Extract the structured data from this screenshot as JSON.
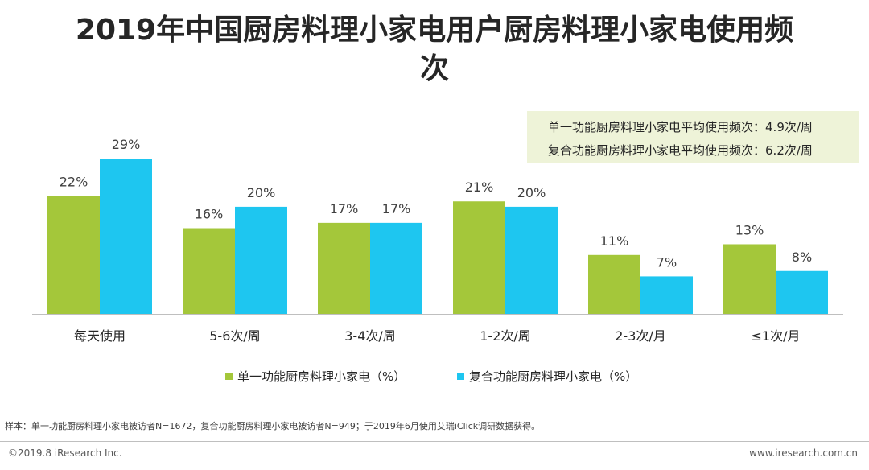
{
  "title": "2019年中国厨房料理小家电用户厨房料理小家电使用频次",
  "info_box": {
    "line1": "单一功能厨房料理小家电平均使用频次：4.9次/周",
    "line2": "复合功能厨房料理小家电平均使用频次：6.2次/周"
  },
  "colors": {
    "series1": "#a4c73a",
    "series2": "#1ec6f0",
    "axis": "#bfbfbf"
  },
  "chart_data": {
    "type": "bar",
    "title": "2019年中国厨房料理小家电用户厨房料理小家电使用频次",
    "categories": [
      "每天使用",
      "5-6次/周",
      "3-4次/周",
      "1-2次/周",
      "2-3次/月",
      "≤1次/月"
    ],
    "series": [
      {
        "name": "单一功能厨房料理小家电（%）",
        "values": [
          22,
          16,
          17,
          21,
          11,
          13
        ],
        "labels": [
          "22%",
          "16%",
          "17%",
          "21%",
          "11%",
          "13%"
        ]
      },
      {
        "name": "复合功能厨房料理小家电（%）",
        "values": [
          29,
          20,
          17,
          20,
          7,
          8
        ],
        "labels": [
          "29%",
          "20%",
          "17%",
          "20%",
          "7%",
          "8%"
        ]
      }
    ],
    "xlabel": "",
    "ylabel": "",
    "ylim": [
      0,
      30
    ],
    "grid": false,
    "legend": "bottom-center"
  },
  "legend": {
    "item1": "单一功能厨房料理小家电（%）",
    "item2": "复合功能厨房料理小家电（%）"
  },
  "sample_note": "样本：单一功能厨房料理小家电被访者N=1672，复合功能厨房料理小家电被访者N=949；于2019年6月使用艾瑞iClick调研数据获得。",
  "footer": {
    "copyright": "©2019.8 iResearch Inc.",
    "website": "www.iresearch.com.cn"
  }
}
